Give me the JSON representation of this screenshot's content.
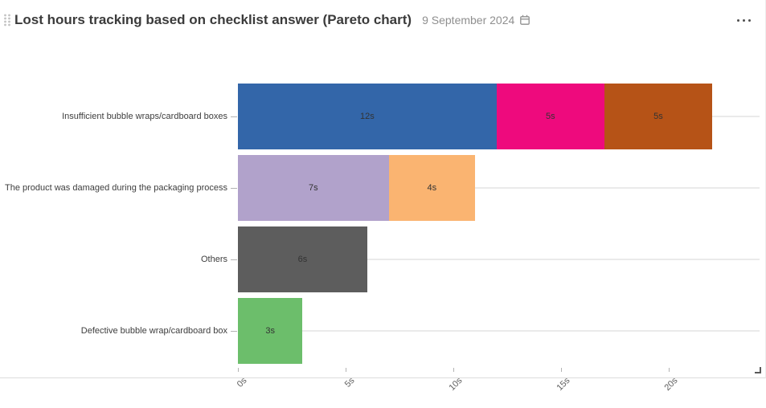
{
  "header": {
    "title": "Lost hours tracking based on checklist answer (Pareto chart)",
    "date": "9 September 2024",
    "icons": {
      "drag_handle": "grip-dots-icon",
      "calendar": "calendar-icon",
      "menu": "ellipsis-icon",
      "resize": "resize-corner-icon"
    }
  },
  "chart_data": {
    "type": "bar",
    "orientation": "horizontal",
    "stacked": true,
    "title": "Lost hours tracking based on checklist answer (Pareto chart)",
    "unit": "s",
    "grid": true,
    "legend": "none",
    "xlim": [
      0,
      24.2
    ],
    "xticks": [
      {
        "value": 0,
        "label": "0s"
      },
      {
        "value": 5,
        "label": "5s"
      },
      {
        "value": 10,
        "label": "10s"
      },
      {
        "value": 15,
        "label": "15s"
      },
      {
        "value": 20,
        "label": "20s"
      }
    ],
    "categories": [
      "Insufficient bubble wraps/cardboard boxes",
      "The product was damaged during the packaging process",
      "Others",
      "Defective bubble wrap/cardboard box"
    ],
    "rows": [
      {
        "total": 22,
        "segments": [
          {
            "value": 12,
            "label": "12s",
            "color": "#3366a9"
          },
          {
            "value": 5,
            "label": "5s",
            "color": "#ee0a7d"
          },
          {
            "value": 5,
            "label": "5s",
            "color": "#b65317"
          }
        ]
      },
      {
        "total": 11,
        "segments": [
          {
            "value": 7,
            "label": "7s",
            "color": "#b1a2cb"
          },
          {
            "value": 4,
            "label": "4s",
            "color": "#fab471"
          }
        ]
      },
      {
        "total": 6,
        "segments": [
          {
            "value": 6,
            "label": "6s",
            "color": "#5d5d5d"
          }
        ]
      },
      {
        "total": 3,
        "segments": [
          {
            "value": 3,
            "label": "3s",
            "color": "#6cbe6b"
          }
        ]
      }
    ]
  }
}
